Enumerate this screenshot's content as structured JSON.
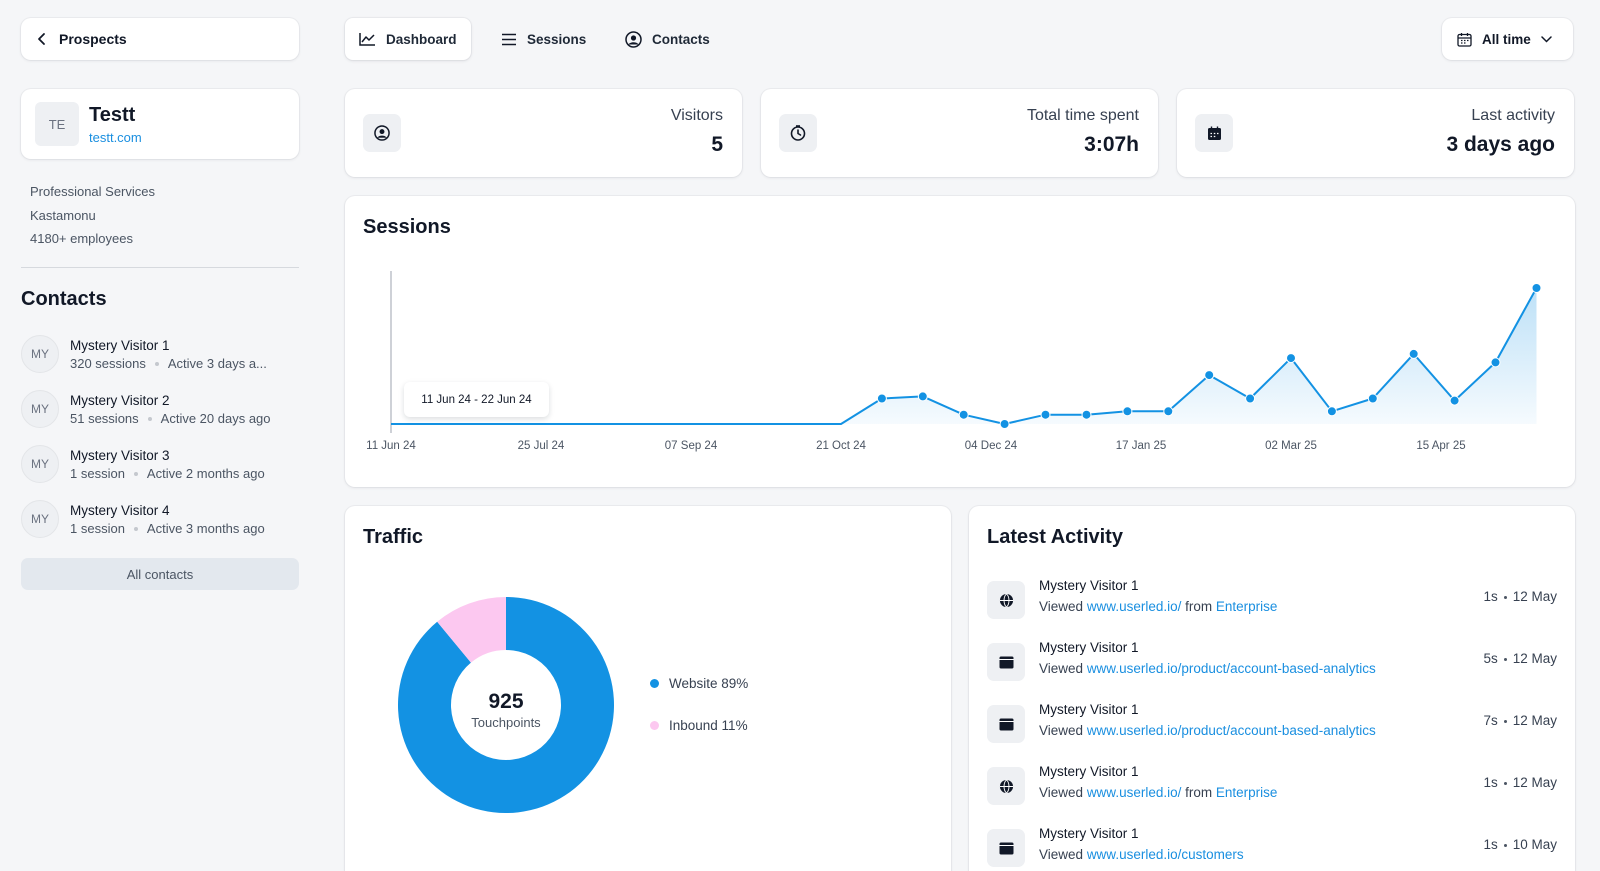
{
  "back": {
    "label": "Prospects"
  },
  "company": {
    "initials": "TE",
    "name": "Testt",
    "url": "testt.com",
    "industry": "Professional Services",
    "location": "Kastamonu",
    "employees": "4180+ employees"
  },
  "contacts": {
    "title": "Contacts",
    "items": [
      {
        "initials": "MY",
        "name": "Mystery Visitor 1",
        "sessions": "320 sessions",
        "active": "Active 3 days a..."
      },
      {
        "initials": "MY",
        "name": "Mystery Visitor 2",
        "sessions": "51 sessions",
        "active": "Active 20 days ago"
      },
      {
        "initials": "MY",
        "name": "Mystery Visitor 3",
        "sessions": "1 session",
        "active": "Active 2 months ago"
      },
      {
        "initials": "MY",
        "name": "Mystery Visitor 4",
        "sessions": "1 session",
        "active": "Active 3 months ago"
      }
    ],
    "all_label": "All contacts"
  },
  "nav": {
    "tabs": [
      {
        "label": "Dashboard",
        "icon": "line-chart-icon",
        "active": true
      },
      {
        "label": "Sessions",
        "icon": "list-icon",
        "active": false
      },
      {
        "label": "Contacts",
        "icon": "user-circle-icon",
        "active": false
      }
    ],
    "range": "All time"
  },
  "stats": [
    {
      "label": "Visitors",
      "value": "5",
      "icon": "user-circle-icon"
    },
    {
      "label": "Total time spent",
      "value": "3:07h",
      "icon": "clock-icon"
    },
    {
      "label": "Last activity",
      "value": "3 days ago",
      "icon": "calendar-icon"
    }
  ],
  "sessions_chart": {
    "title": "Sessions",
    "tooltip": "11 Jun 24 - 22 Jun 24"
  },
  "chart_data": [
    {
      "type": "area",
      "title": "Sessions",
      "x_ticks": [
        "11 Jun 24",
        "25 Jul 24",
        "07 Sep 24",
        "21 Oct 24",
        "04 Dec 24",
        "17 Jan 25",
        "02 Mar 25",
        "15 Apr 25"
      ],
      "x": [
        "21 Oct 24",
        "2 Nov 24",
        "14 Nov 24",
        "26 Nov 24",
        "8 Dec 24",
        "20 Dec 24",
        "1 Jan 25",
        "13 Jan 25",
        "25 Jan 25",
        "6 Feb 25",
        "18 Feb 25",
        "2 Mar 25",
        "14 Mar 25",
        "26 Mar 25",
        "7 Apr 25",
        "19 Apr 25",
        "1 May 25",
        "13 May 25"
      ],
      "values": [
        0,
        6,
        6.5,
        2.2,
        0,
        2.2,
        2.2,
        3,
        3,
        11.5,
        6,
        15.5,
        3,
        6,
        16.5,
        5.5,
        14.5,
        32
      ],
      "ylim": [
        0,
        36
      ],
      "grid": false
    },
    {
      "type": "pie",
      "title": "Traffic",
      "center_value": "925",
      "center_label": "Touchpoints",
      "slices": [
        {
          "label": "Website",
          "percent": 89,
          "color": "#1392e3"
        },
        {
          "label": "Inbound",
          "percent": 11,
          "color": "#fcc8f0"
        }
      ]
    }
  ],
  "traffic": {
    "title": "Traffic",
    "total": "925",
    "total_label": "Touchpoints",
    "legend": [
      {
        "label": "Website 89%",
        "color": "#1392e3"
      },
      {
        "label": "Inbound 11%",
        "color": "#fcc8f0"
      }
    ]
  },
  "activity": {
    "title": "Latest Activity",
    "items": [
      {
        "name": "Mystery Visitor 1",
        "verb": "Viewed",
        "link": "www.userled.io/",
        "from_word": "from",
        "source": "Enterprise",
        "duration": "1s",
        "date": "12 May",
        "icon": "globe-icon"
      },
      {
        "name": "Mystery Visitor 1",
        "verb": "Viewed",
        "link": "www.userled.io/product/account-based-analytics",
        "from_word": "",
        "source": "",
        "duration": "5s",
        "date": "12 May",
        "icon": "browser-icon"
      },
      {
        "name": "Mystery Visitor 1",
        "verb": "Viewed",
        "link": "www.userled.io/product/account-based-analytics",
        "from_word": "",
        "source": "",
        "duration": "7s",
        "date": "12 May",
        "icon": "browser-icon"
      },
      {
        "name": "Mystery Visitor 1",
        "verb": "Viewed",
        "link": "www.userled.io/",
        "from_word": "from",
        "source": "Enterprise",
        "duration": "1s",
        "date": "12 May",
        "icon": "globe-icon"
      },
      {
        "name": "Mystery Visitor 1",
        "verb": "Viewed",
        "link": "www.userled.io/customers",
        "from_word": "",
        "source": "",
        "duration": "1s",
        "date": "10 May",
        "icon": "browser-icon"
      }
    ]
  },
  "colors": {
    "accent": "#1392e3",
    "link": "#1a8fe0",
    "inbound": "#fcc8f0"
  }
}
